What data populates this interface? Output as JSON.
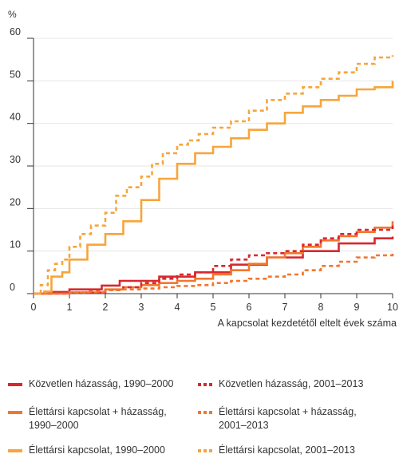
{
  "chart_data": {
    "type": "line",
    "y_unit_label": "%",
    "xlabel": "A kapcsolat kezdetétől eltelt évek száma",
    "ylabel": "",
    "xlim": [
      0,
      10
    ],
    "ylim": [
      0,
      60
    ],
    "x_ticks": [
      "0",
      "1",
      "2",
      "3",
      "4",
      "5",
      "6",
      "7",
      "8",
      "9",
      "10"
    ],
    "y_ticks": [
      "0",
      "10",
      "20",
      "30",
      "40",
      "50",
      "60"
    ],
    "grid": "horizontal",
    "legend_position": "bottom",
    "series": [
      {
        "name": "Közvetlen házasság, 1990–2000",
        "color": "#d8282f",
        "dashed": false,
        "x": [
          0,
          0.5,
          1,
          1.9,
          2.4,
          3.5,
          4.5,
          5.5,
          6.5,
          7.5,
          8.5,
          9.5,
          10
        ],
        "y": [
          0,
          0.4,
          1,
          1.9,
          3,
          4,
          5,
          6.8,
          8.5,
          10,
          11.8,
          13,
          13.4
        ]
      },
      {
        "name": "Élettársi kapcsolat + házasság, 1990–2000",
        "color": "#f2762e",
        "dashed": false,
        "x": [
          0,
          1,
          2,
          2.5,
          3,
          3.5,
          4,
          4.5,
          5,
          5.5,
          6,
          6.5,
          7,
          7.5,
          8,
          8.5,
          9,
          9.5,
          10
        ],
        "y": [
          0,
          0.3,
          1,
          1.5,
          2,
          2.5,
          3,
          3.5,
          4.5,
          5.5,
          7,
          8.5,
          9.5,
          11,
          12.5,
          13.5,
          14.5,
          15.5,
          17
        ]
      },
      {
        "name": "Élettársi kapcsolat, 1990–2000",
        "color": "#f7a53b",
        "dashed": false,
        "x": [
          0,
          0.3,
          0.5,
          0.8,
          1,
          1.5,
          2,
          2.5,
          3,
          3.5,
          4,
          4.5,
          5,
          5.5,
          6,
          6.5,
          7,
          7.5,
          8,
          8.5,
          9,
          9.5,
          10
        ],
        "y": [
          0,
          0.5,
          4,
          5,
          8,
          11.5,
          14,
          17,
          22,
          27,
          30.5,
          33,
          34.5,
          36.5,
          38.5,
          40,
          42.5,
          44,
          45.5,
          46.5,
          48,
          48.5,
          50
        ]
      },
      {
        "name": "Közvetlen házasság, 2001–2013",
        "color": "#d8282f",
        "dashed": true,
        "x": [
          0,
          1,
          2,
          2.5,
          3,
          3.5,
          4,
          4.5,
          5,
          5.5,
          6,
          6.5,
          7,
          7.5,
          8,
          8.5,
          9,
          9.5,
          10
        ],
        "y": [
          0,
          0.2,
          0.8,
          1.5,
          2.5,
          3.5,
          4.5,
          5,
          6.5,
          8,
          9,
          9.5,
          10,
          11.5,
          13,
          14,
          15,
          15,
          16
        ]
      },
      {
        "name": "Élettársi kapcsolat + házasság, 2001–2013",
        "color": "#f2762e",
        "dashed": true,
        "x": [
          0,
          1,
          1.5,
          2,
          2.5,
          3,
          3.5,
          4,
          4.5,
          5,
          5.5,
          6,
          6.5,
          7,
          7.5,
          8,
          8.5,
          9,
          9.5,
          10
        ],
        "y": [
          0,
          0.3,
          0.5,
          0.8,
          1,
          1.2,
          1.5,
          1.8,
          2,
          2.5,
          3,
          3.5,
          4,
          4.5,
          5.5,
          6.5,
          7.5,
          8.5,
          9,
          10
        ]
      },
      {
        "name": "Élettársi kapcsolat, 2001–2013",
        "color": "#f7a53b",
        "dashed": true,
        "x": [
          0,
          0.2,
          0.4,
          0.6,
          0.8,
          1,
          1.3,
          1.6,
          2,
          2.3,
          2.6,
          3,
          3.3,
          3.6,
          4,
          4.3,
          4.6,
          5,
          5.5,
          6,
          6.5,
          7,
          7.5,
          8,
          8.5,
          9,
          9.5,
          10
        ],
        "y": [
          0,
          2,
          5.5,
          7,
          8,
          11,
          14,
          16,
          19,
          23,
          25,
          27.5,
          30.5,
          33,
          35,
          36,
          37.5,
          39,
          40.5,
          43,
          45.5,
          47,
          48.5,
          50.5,
          52,
          54,
          55.5,
          56
        ]
      }
    ],
    "legend": [
      {
        "label": "Közvetlen házasság, 1990–2000",
        "color": "#d8282f",
        "dashed": false
      },
      {
        "label": "Közvetlen házasság, 2001–2013",
        "color": "#d8282f",
        "dashed": true
      },
      {
        "label": "Élettársi kapcsolat + házasság, 1990–2000",
        "color": "#f2762e",
        "dashed": false
      },
      {
        "label": "Élettársi kapcsolat + házasság, 2001–2013",
        "color": "#f2762e",
        "dashed": true
      },
      {
        "label": "Élettársi kapcsolat, 1990–2000",
        "color": "#f7a53b",
        "dashed": false
      },
      {
        "label": "Élettársi kapcsolat, 2001–2013",
        "color": "#f7a53b",
        "dashed": true
      }
    ],
    "grid_color": "#e6e6e6",
    "axis_color": "#333333"
  }
}
